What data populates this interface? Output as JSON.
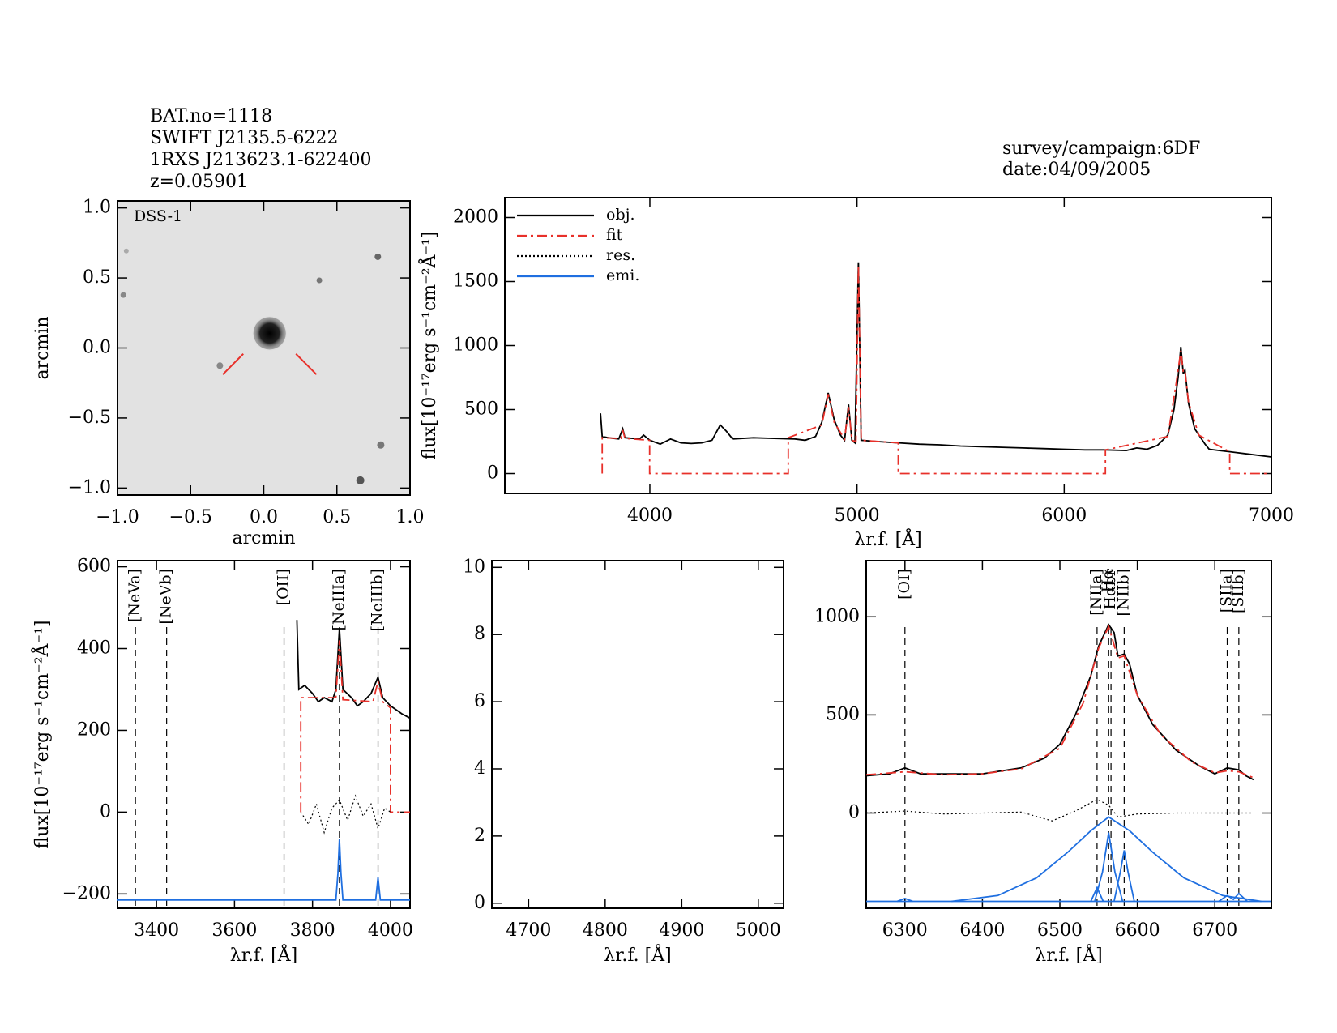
{
  "header": {
    "left": [
      "BAT.no=1118",
      "SWIFT J2135.5-6222",
      "1RXS J213623.1-622400",
      "z=0.05901"
    ],
    "right": [
      "survey/campaign:6DF",
      "date:04/09/2005"
    ]
  },
  "chart_data": [
    {
      "type": "image",
      "label": "DSS-1",
      "xlabel": "arcmin",
      "ylabel": "arcmin",
      "xlim": [
        -1,
        1
      ],
      "ylim": [
        -1.05,
        1.05
      ],
      "xticks": [
        {
          "value": -1,
          "label": "−1.0"
        },
        {
          "value": -0.5,
          "label": "−0.5"
        },
        {
          "value": 0,
          "label": "0.0"
        },
        0.5,
        {
          "value": 1,
          "label": "1.0"
        }
      ],
      "yticks": [
        {
          "value": -1,
          "label": "−1.0"
        },
        {
          "value": -0.5,
          "label": "−0.5"
        },
        {
          "value": 0,
          "label": "0.0"
        },
        0.5,
        {
          "value": 1,
          "label": "1.0"
        }
      ]
    },
    {
      "type": "line",
      "ylabel": "flux[10⁻¹⁷erg s⁻¹cm⁻²Å⁻¹]",
      "xlabel": "λr.f. [Å]",
      "xlim": [
        3300,
        7000
      ],
      "ylim": [
        -155,
        2155
      ],
      "xticks": [
        4000,
        5000,
        6000,
        7000
      ],
      "yticks": [
        0,
        500,
        1000,
        1500,
        2000
      ],
      "legend": "upper left",
      "legend_entries": [
        {
          "name": "obj.",
          "color": "#000000",
          "style": "solid"
        },
        {
          "name": "fit",
          "color": "#e8302a",
          "style": "dashdot"
        },
        {
          "name": "res.",
          "color": "#000000",
          "style": "dotted"
        },
        {
          "name": "emi.",
          "color": "#1f6fe0",
          "style": "solid"
        }
      ],
      "series": [
        {
          "color": "#000000",
          "style": "solid",
          "x": [
            3762,
            3770,
            3800,
            3850,
            3869,
            3880,
            3950,
            3970,
            4000,
            4050,
            4100,
            4150,
            4200,
            4250,
            4300,
            4340,
            4370,
            4400,
            4500,
            4600,
            4700,
            4750,
            4800,
            4830,
            4861,
            4890,
            4920,
            4940,
            4959,
            4975,
            4990,
            5007,
            5020,
            5100,
            5200,
            5300,
            5400,
            5500,
            5600,
            5700,
            5800,
            5900,
            6000,
            6100,
            6200,
            6300,
            6350,
            6400,
            6450,
            6500,
            6530,
            6550,
            6563,
            6575,
            6583,
            6600,
            6630,
            6680,
            6700,
            6750,
            6800,
            6900,
            7000
          ],
          "values": [
            470,
            290,
            280,
            270,
            350,
            280,
            270,
            300,
            260,
            230,
            270,
            240,
            235,
            240,
            260,
            380,
            330,
            270,
            280,
            275,
            270,
            260,
            290,
            400,
            630,
            420,
            300,
            260,
            540,
            260,
            240,
            1650,
            260,
            250,
            240,
            230,
            225,
            215,
            210,
            205,
            200,
            195,
            190,
            185,
            185,
            180,
            200,
            190,
            220,
            300,
            500,
            750,
            990,
            780,
            810,
            550,
            350,
            230,
            190,
            180,
            170,
            150,
            130
          ]
        },
        {
          "color": "#e8302a",
          "style": "dashdot",
          "x": [
            3770,
            3770,
            3860,
            3869,
            3880,
            3999,
            3999,
            4668,
            4668,
            4830,
            4861,
            4890,
            4940,
            4959,
            4975,
            4995,
            5007,
            5020,
            5199,
            5199,
            6199,
            6199,
            6500,
            6540,
            6563,
            6575,
            6583,
            6600,
            6650,
            6799,
            6799,
            7000
          ],
          "values": [
            0,
            280,
            275,
            340,
            275,
            260,
            0,
            0,
            280,
            380,
            620,
            400,
            270,
            520,
            260,
            250,
            1630,
            260,
            240,
            0,
            0,
            185,
            290,
            700,
            960,
            790,
            800,
            560,
            300,
            170,
            0,
            0
          ]
        }
      ]
    },
    {
      "type": "line",
      "ylabel": "flux[10⁻¹⁷erg s⁻¹cm⁻²Å⁻¹]",
      "xlabel": "λr.f. [Å]",
      "xlim": [
        3300,
        4050
      ],
      "ylim": [
        -235,
        615
      ],
      "xticks": [
        3400,
        3600,
        3800,
        4000
      ],
      "yticks": [
        {
          "value": -200,
          "label": "−200"
        },
        0,
        200,
        400,
        600
      ],
      "lines": [
        {
          "label": "[NeVa]",
          "x": 3346,
          "color": "#e8302a"
        },
        {
          "label": "[NeVb]",
          "x": 3426,
          "color": "#e8302a"
        },
        {
          "label": "[OII]",
          "x": 3727,
          "color": "#e8302a"
        },
        {
          "label": "[NeIIIa]",
          "x": 3869,
          "color": "#000000"
        },
        {
          "label": "[NeIIIb]",
          "x": 3968,
          "color": "#000000"
        }
      ],
      "series": [
        {
          "color": "#000000",
          "style": "solid",
          "x": [
            3760,
            3765,
            3780,
            3800,
            3815,
            3830,
            3850,
            3860,
            3869,
            3878,
            3900,
            3915,
            3930,
            3950,
            3968,
            3980,
            4000,
            4015,
            4030,
            4050
          ],
          "values": [
            470,
            300,
            310,
            290,
            270,
            280,
            270,
            300,
            450,
            300,
            280,
            260,
            270,
            290,
            330,
            280,
            260,
            250,
            240,
            230
          ]
        },
        {
          "color": "#e8302a",
          "style": "dashdot",
          "x": [
            3770,
            3770,
            3860,
            3869,
            3878,
            3955,
            3968,
            3980,
            4000,
            4000,
            4050
          ],
          "values": [
            0,
            280,
            280,
            420,
            275,
            270,
            320,
            270,
            255,
            0,
            0
          ]
        },
        {
          "color": "#000000",
          "style": "dotted",
          "x": [
            3770,
            3790,
            3810,
            3830,
            3850,
            3869,
            3890,
            3910,
            3930,
            3950,
            3968,
            3985,
            4000
          ],
          "values": [
            0,
            -30,
            20,
            -50,
            10,
            30,
            -20,
            40,
            -10,
            20,
            -40,
            10,
            0
          ]
        },
        {
          "color": "#1f6fe0",
          "style": "solid",
          "x": [
            3300,
            3860,
            3865,
            3869,
            3873,
            3878,
            3962,
            3968,
            3974,
            4050
          ],
          "values": [
            -215,
            -215,
            -150,
            -65,
            -150,
            -215,
            -215,
            -160,
            -215,
            -215
          ]
        }
      ]
    },
    {
      "type": "line",
      "xlabel": "λr.f. [Å]",
      "xlim": [
        4652,
        5033
      ],
      "ylim": [
        -0.15,
        10.2
      ],
      "xticks": [
        4700,
        4800,
        4900,
        5000
      ],
      "yticks": [
        0,
        2,
        4,
        6,
        8,
        10
      ]
    },
    {
      "type": "line",
      "xlabel": "λr.f. [Å]",
      "xlim": [
        6250,
        6773
      ],
      "ylim": [
        -485,
        1286
      ],
      "xticks": [
        6300,
        6400,
        6500,
        6600,
        6700
      ],
      "yticks": [
        0,
        500,
        1000
      ],
      "lines": [
        {
          "label": "[OI]",
          "x": 6300,
          "color": "#000000"
        },
        {
          "label": "[NIIa]",
          "x": 6548,
          "color": "#000000"
        },
        {
          "label": "Hα",
          "x": 6563,
          "color": "#000000"
        },
        {
          "label": "Hαbr",
          "x": 6566,
          "color": "#000000"
        },
        {
          "label": "[NIIb]",
          "x": 6583,
          "color": "#000000"
        },
        {
          "label": "[SIIa]",
          "x": 6716,
          "color": "#000000"
        },
        {
          "label": "[SIIb]",
          "x": 6731,
          "color": "#000000"
        }
      ],
      "series": [
        {
          "color": "#000000",
          "style": "solid",
          "x": [
            6250,
            6280,
            6300,
            6320,
            6350,
            6400,
            6450,
            6480,
            6500,
            6520,
            6540,
            6550,
            6563,
            6570,
            6575,
            6583,
            6590,
            6600,
            6620,
            6650,
            6680,
            6700,
            6716,
            6731,
            6740,
            6750
          ],
          "values": [
            190,
            200,
            230,
            200,
            200,
            200,
            230,
            280,
            350,
            500,
            700,
            850,
            960,
            920,
            800,
            810,
            760,
            600,
            450,
            320,
            240,
            200,
            230,
            220,
            190,
            170
          ]
        },
        {
          "color": "#e8302a",
          "style": "dashdot",
          "x": [
            6250,
            6300,
            6350,
            6400,
            6450,
            6500,
            6530,
            6550,
            6563,
            6575,
            6583,
            6600,
            6630,
            6670,
            6700,
            6716,
            6731,
            6750
          ],
          "values": [
            195,
            210,
            195,
            200,
            225,
            330,
            560,
            840,
            950,
            790,
            800,
            600,
            400,
            260,
            205,
            215,
            210,
            180
          ]
        },
        {
          "color": "#000000",
          "style": "dotted",
          "x": [
            6250,
            6300,
            6350,
            6400,
            6450,
            6490,
            6520,
            6548,
            6563,
            6575,
            6600,
            6650,
            6700,
            6750
          ],
          "values": [
            0,
            10,
            -5,
            0,
            5,
            -40,
            10,
            70,
            40,
            -20,
            -5,
            0,
            0,
            0
          ]
        },
        {
          "color": "#1f6fe0",
          "style": "solid",
          "x": [
            6250,
            6773
          ],
          "values": [
            -450,
            -450
          ]
        },
        {
          "color": "#1f6fe0",
          "style": "solid",
          "x": [
            6360,
            6420,
            6470,
            6510,
            6540,
            6563,
            6590,
            6620,
            6660,
            6710,
            6760
          ],
          "values": [
            -450,
            -420,
            -330,
            -200,
            -90,
            -20,
            -90,
            -200,
            -330,
            -420,
            -450
          ]
        },
        {
          "color": "#1f6fe0",
          "style": "solid",
          "x": [
            6545,
            6555,
            6563,
            6571,
            6581
          ],
          "values": [
            -450,
            -300,
            -100,
            -300,
            -450
          ]
        },
        {
          "color": "#1f6fe0",
          "style": "solid",
          "x": [
            6570,
            6578,
            6583,
            6588,
            6596
          ],
          "values": [
            -450,
            -300,
            -190,
            -300,
            -450
          ]
        },
        {
          "color": "#1f6fe0",
          "style": "solid",
          "x": [
            6540,
            6548,
            6556
          ],
          "values": [
            -450,
            -380,
            -450
          ]
        },
        {
          "color": "#1f6fe0",
          "style": "solid",
          "x": [
            6290,
            6300,
            6310
          ],
          "values": [
            -450,
            -435,
            -450
          ]
        },
        {
          "color": "#1f6fe0",
          "style": "solid",
          "x": [
            6705,
            6716,
            6724,
            6731,
            6742
          ],
          "values": [
            -450,
            -420,
            -440,
            -410,
            -450
          ]
        }
      ]
    }
  ]
}
